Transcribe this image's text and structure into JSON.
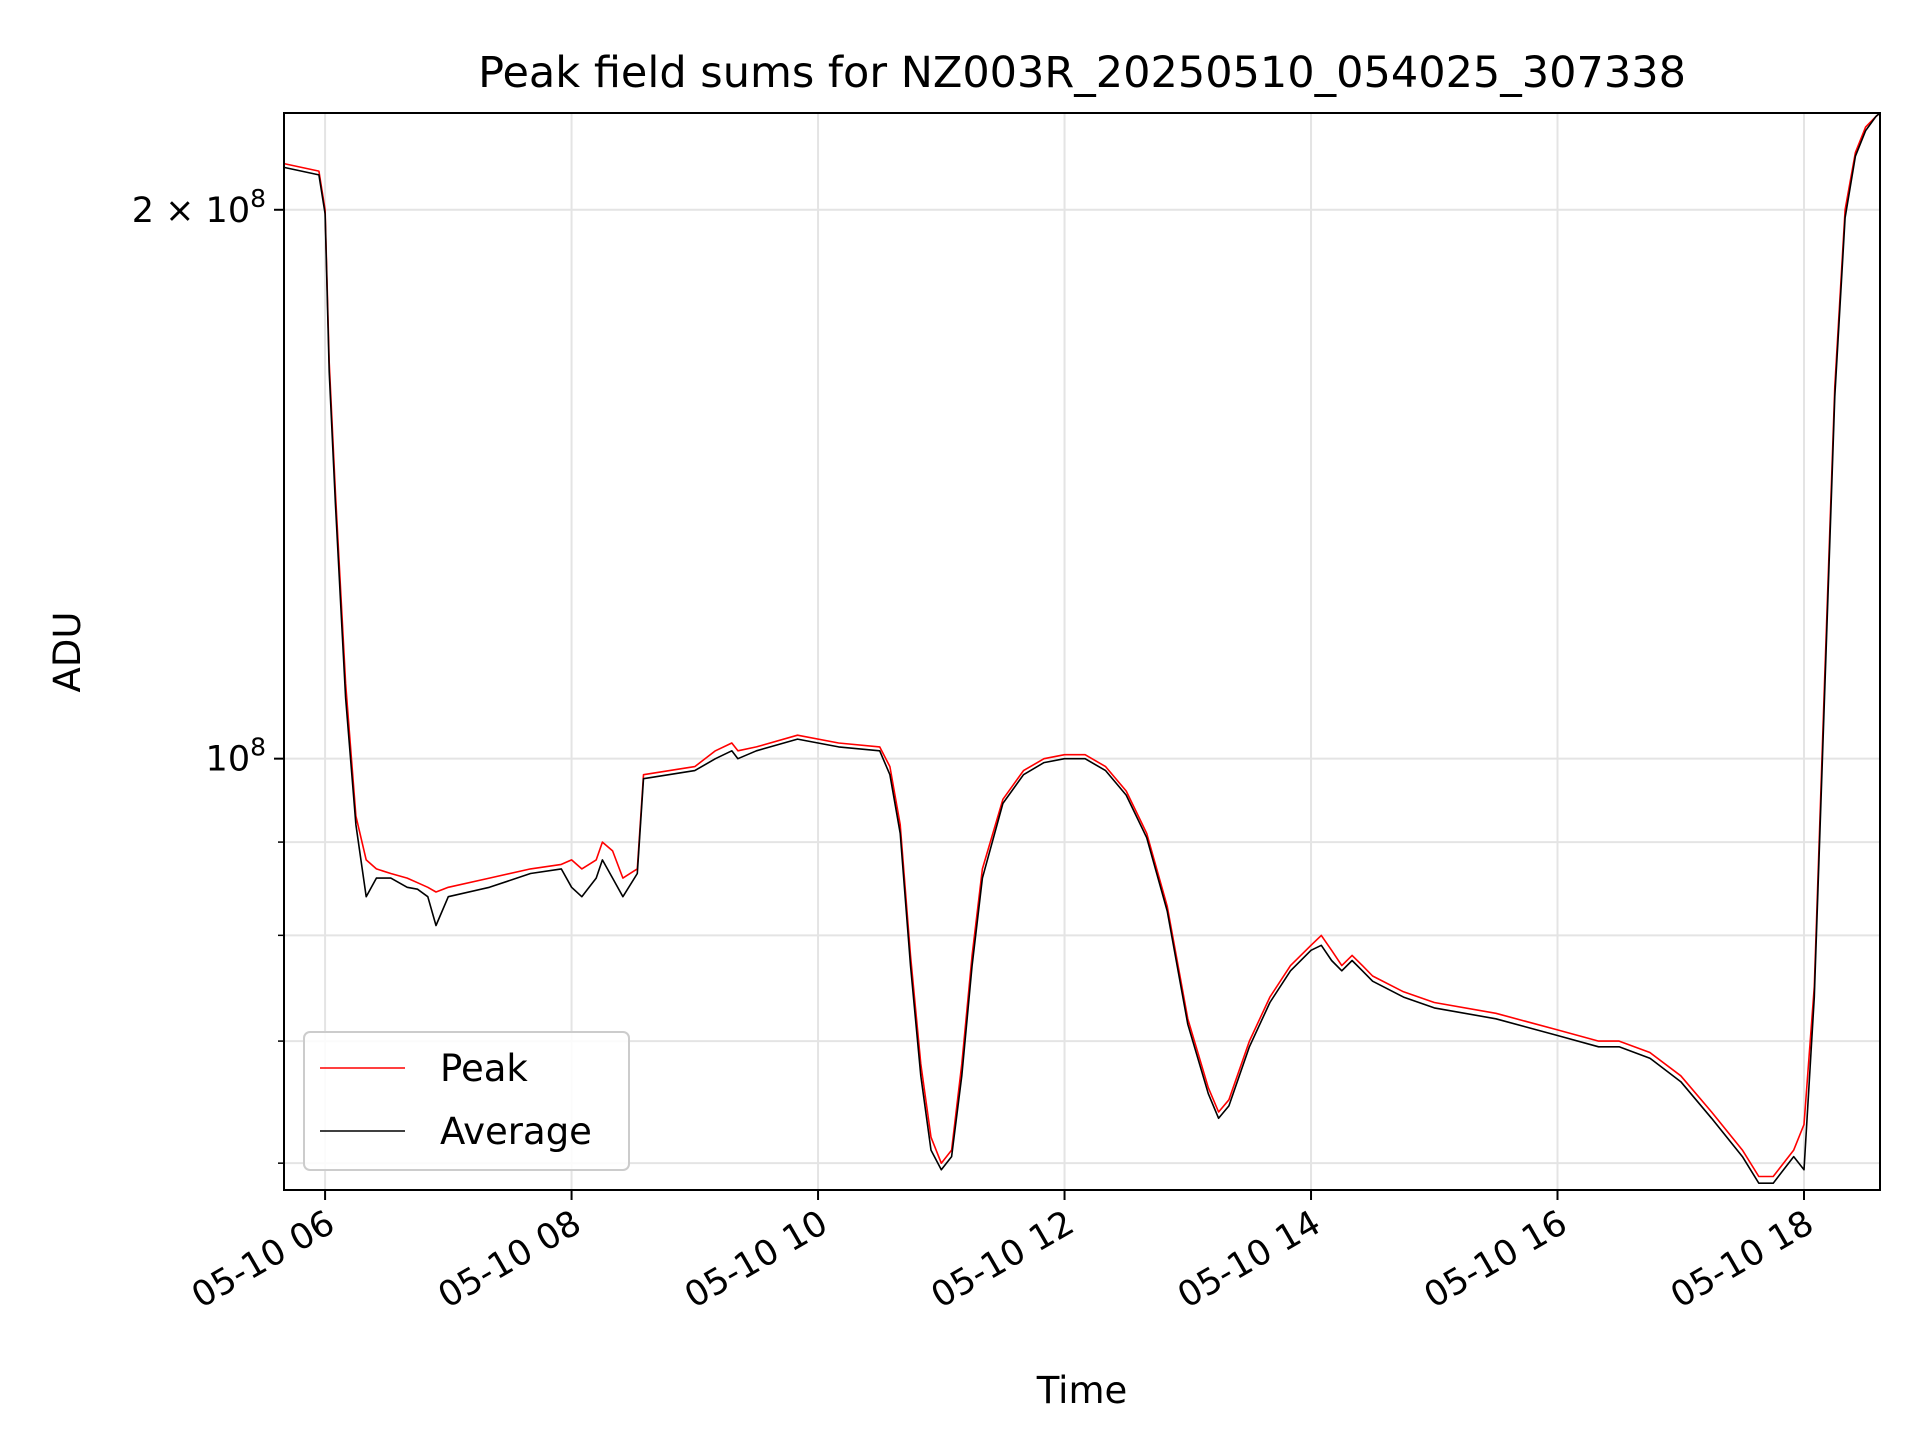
{
  "chart_data": {
    "type": "line",
    "title": "Peak field sums for NZ003R_20250510_054025_307338",
    "xlabel": "Time",
    "ylabel": "ADU",
    "yscale": "log",
    "grid": true,
    "legend_position": "lower-left",
    "xlim": [
      "2025-05-10 05:40",
      "2025-05-10 18:37"
    ],
    "ylim": [
      58000000,
      226000000
    ],
    "x_ticks": [
      {
        "value": "2025-05-10 06:00",
        "label": "05-10 06"
      },
      {
        "value": "2025-05-10 08:00",
        "label": "05-10 08"
      },
      {
        "value": "2025-05-10 10:00",
        "label": "05-10 10"
      },
      {
        "value": "2025-05-10 12:00",
        "label": "05-10 12"
      },
      {
        "value": "2025-05-10 14:00",
        "label": "05-10 14"
      },
      {
        "value": "2025-05-10 16:00",
        "label": "05-10 16"
      },
      {
        "value": "2025-05-10 18:00",
        "label": "05-10 18"
      }
    ],
    "y_major_ticks": [
      {
        "value": 100000000,
        "base": "10",
        "exp": "8"
      },
      {
        "value": 200000000,
        "base": "2 × 10",
        "exp": "8"
      }
    ],
    "y_minor_ticks": [
      60000000,
      70000000,
      80000000,
      90000000
    ],
    "series": [
      {
        "name": "Peak",
        "color": "#ff0000",
        "x": [
          "2025-05-10 05:40",
          "2025-05-10 05:57",
          "2025-05-10 06:00",
          "2025-05-10 06:02",
          "2025-05-10 06:05",
          "2025-05-10 06:10",
          "2025-05-10 06:15",
          "2025-05-10 06:20",
          "2025-05-10 06:25",
          "2025-05-10 06:32",
          "2025-05-10 06:40",
          "2025-05-10 06:45",
          "2025-05-10 06:50",
          "2025-05-10 06:54",
          "2025-05-10 07:00",
          "2025-05-10 07:20",
          "2025-05-10 07:40",
          "2025-05-10 07:55",
          "2025-05-10 08:00",
          "2025-05-10 08:05",
          "2025-05-10 08:12",
          "2025-05-10 08:15",
          "2025-05-10 08:20",
          "2025-05-10 08:25",
          "2025-05-10 08:32",
          "2025-05-10 08:35",
          "2025-05-10 09:00",
          "2025-05-10 09:10",
          "2025-05-10 09:18",
          "2025-05-10 09:21",
          "2025-05-10 09:30",
          "2025-05-10 09:50",
          "2025-05-10 10:10",
          "2025-05-10 10:30",
          "2025-05-10 10:35",
          "2025-05-10 10:40",
          "2025-05-10 10:45",
          "2025-05-10 10:50",
          "2025-05-10 10:55",
          "2025-05-10 11:00",
          "2025-05-10 11:05",
          "2025-05-10 11:10",
          "2025-05-10 11:15",
          "2025-05-10 11:20",
          "2025-05-10 11:30",
          "2025-05-10 11:40",
          "2025-05-10 11:50",
          "2025-05-10 12:00",
          "2025-05-10 12:10",
          "2025-05-10 12:20",
          "2025-05-10 12:30",
          "2025-05-10 12:40",
          "2025-05-10 12:50",
          "2025-05-10 13:00",
          "2025-05-10 13:10",
          "2025-05-10 13:15",
          "2025-05-10 13:20",
          "2025-05-10 13:30",
          "2025-05-10 13:40",
          "2025-05-10 13:50",
          "2025-05-10 14:00",
          "2025-05-10 14:05",
          "2025-05-10 14:10",
          "2025-05-10 14:15",
          "2025-05-10 14:20",
          "2025-05-10 14:25",
          "2025-05-10 14:30",
          "2025-05-10 14:45",
          "2025-05-10 15:00",
          "2025-05-10 15:30",
          "2025-05-10 16:00",
          "2025-05-10 16:20",
          "2025-05-10 16:30",
          "2025-05-10 16:45",
          "2025-05-10 17:00",
          "2025-05-10 17:15",
          "2025-05-10 17:30",
          "2025-05-10 17:38",
          "2025-05-10 17:45",
          "2025-05-10 17:55",
          "2025-05-10 18:00",
          "2025-05-10 18:05",
          "2025-05-10 18:10",
          "2025-05-10 18:15",
          "2025-05-10 18:20",
          "2025-05-10 18:25",
          "2025-05-10 18:30",
          "2025-05-10 18:35",
          "2025-05-10 18:37"
        ],
        "y": [
          212000000,
          210000000,
          200000000,
          165000000,
          140000000,
          110000000,
          93000000,
          88000000,
          87000000,
          86500000,
          86000000,
          85500000,
          85000000,
          84500000,
          85000000,
          86000000,
          87000000,
          87500000,
          88000000,
          87000000,
          88000000,
          90000000,
          89000000,
          86000000,
          87000000,
          98000000,
          99000000,
          101000000,
          102000000,
          101000000,
          101500000,
          103000000,
          102000000,
          101500000,
          99000000,
          92000000,
          78000000,
          68000000,
          62000000,
          60000000,
          61000000,
          68000000,
          78000000,
          87000000,
          95000000,
          98500000,
          100000000,
          100500000,
          100500000,
          99000000,
          96000000,
          91000000,
          83000000,
          72000000,
          66000000,
          64000000,
          65000000,
          70000000,
          74000000,
          77000000,
          79000000,
          80000000,
          78500000,
          77000000,
          78000000,
          77000000,
          76000000,
          74500000,
          73500000,
          72500000,
          71000000,
          70000000,
          70000000,
          69000000,
          67000000,
          64000000,
          61000000,
          59000000,
          59000000,
          61000000,
          63000000,
          75000000,
          110000000,
          160000000,
          200000000,
          215000000,
          222000000,
          225000000,
          226000000
        ]
      },
      {
        "name": "Average",
        "color": "#000000",
        "x": [
          "2025-05-10 05:40",
          "2025-05-10 05:57",
          "2025-05-10 06:00",
          "2025-05-10 06:02",
          "2025-05-10 06:05",
          "2025-05-10 06:10",
          "2025-05-10 06:15",
          "2025-05-10 06:20",
          "2025-05-10 06:25",
          "2025-05-10 06:32",
          "2025-05-10 06:40",
          "2025-05-10 06:45",
          "2025-05-10 06:50",
          "2025-05-10 06:54",
          "2025-05-10 07:00",
          "2025-05-10 07:20",
          "2025-05-10 07:40",
          "2025-05-10 07:55",
          "2025-05-10 08:00",
          "2025-05-10 08:05",
          "2025-05-10 08:12",
          "2025-05-10 08:15",
          "2025-05-10 08:20",
          "2025-05-10 08:25",
          "2025-05-10 08:32",
          "2025-05-10 08:35",
          "2025-05-10 09:00",
          "2025-05-10 09:10",
          "2025-05-10 09:18",
          "2025-05-10 09:21",
          "2025-05-10 09:30",
          "2025-05-10 09:50",
          "2025-05-10 10:10",
          "2025-05-10 10:30",
          "2025-05-10 10:35",
          "2025-05-10 10:40",
          "2025-05-10 10:45",
          "2025-05-10 10:50",
          "2025-05-10 10:55",
          "2025-05-10 11:00",
          "2025-05-10 11:05",
          "2025-05-10 11:10",
          "2025-05-10 11:15",
          "2025-05-10 11:20",
          "2025-05-10 11:30",
          "2025-05-10 11:40",
          "2025-05-10 11:50",
          "2025-05-10 12:00",
          "2025-05-10 12:10",
          "2025-05-10 12:20",
          "2025-05-10 12:30",
          "2025-05-10 12:40",
          "2025-05-10 12:50",
          "2025-05-10 13:00",
          "2025-05-10 13:10",
          "2025-05-10 13:15",
          "2025-05-10 13:20",
          "2025-05-10 13:30",
          "2025-05-10 13:40",
          "2025-05-10 13:50",
          "2025-05-10 14:00",
          "2025-05-10 14:05",
          "2025-05-10 14:10",
          "2025-05-10 14:15",
          "2025-05-10 14:20",
          "2025-05-10 14:25",
          "2025-05-10 14:30",
          "2025-05-10 14:45",
          "2025-05-10 15:00",
          "2025-05-10 15:30",
          "2025-05-10 16:00",
          "2025-05-10 16:20",
          "2025-05-10 16:30",
          "2025-05-10 16:45",
          "2025-05-10 17:00",
          "2025-05-10 17:15",
          "2025-05-10 17:30",
          "2025-05-10 17:38",
          "2025-05-10 17:45",
          "2025-05-10 17:55",
          "2025-05-10 18:00",
          "2025-05-10 18:05",
          "2025-05-10 18:10",
          "2025-05-10 18:15",
          "2025-05-10 18:20",
          "2025-05-10 18:25",
          "2025-05-10 18:30",
          "2025-05-10 18:35",
          "2025-05-10 18:37"
        ],
        "y": [
          211000000,
          209000000,
          199000000,
          163000000,
          138000000,
          108000000,
          92000000,
          84000000,
          86000000,
          86000000,
          85000000,
          84800000,
          84000000,
          81000000,
          84000000,
          85000000,
          86500000,
          87000000,
          85000000,
          84000000,
          86000000,
          88000000,
          86000000,
          84000000,
          86500000,
          97500000,
          98500000,
          100000000,
          101000000,
          100000000,
          101000000,
          102500000,
          101500000,
          101000000,
          98000000,
          91000000,
          77000000,
          67000000,
          61000000,
          59500000,
          60500000,
          67000000,
          77000000,
          86000000,
          94500000,
          98000000,
          99500000,
          100000000,
          100000000,
          98500000,
          95500000,
          90500000,
          82500000,
          71500000,
          65500000,
          63500000,
          64500000,
          69500000,
          73500000,
          76500000,
          78500000,
          79000000,
          77500000,
          76500000,
          77500000,
          76500000,
          75500000,
          74000000,
          73000000,
          72000000,
          70500000,
          69500000,
          69500000,
          68500000,
          66500000,
          63500000,
          60500000,
          58500000,
          58500000,
          60500000,
          59500000,
          74000000,
          108000000,
          158000000,
          198000000,
          214000000,
          221000000,
          225000000,
          226000000
        ]
      }
    ]
  }
}
